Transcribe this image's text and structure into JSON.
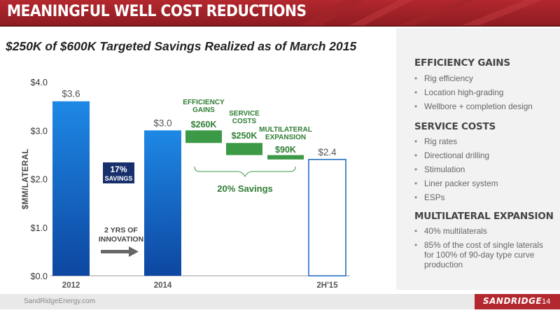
{
  "header": {
    "title": "MEANINGFUL WELL COST REDUCTIONS"
  },
  "subtitle": "$250K of $600K Targeted Savings Realized as of March 2015",
  "panel": {
    "sections": [
      {
        "title": "EFFICIENCY GAINS",
        "items": [
          "Rig efficiency",
          "Location high-grading",
          "Wellbore + completion design"
        ]
      },
      {
        "title": "SERVICE COSTS",
        "items": [
          "Rig rates",
          "Directional drilling",
          "Stimulation",
          "Liner packer system",
          "ESPs"
        ]
      },
      {
        "title": "MULTILATERAL EXPANSION",
        "items": [
          "40% multilaterals",
          "85% of the cost of single laterals for 100% of 90-day type curve production"
        ]
      }
    ]
  },
  "chart_data": {
    "type": "bar",
    "ylabel": "$MM/LATERAL",
    "ylim": [
      0,
      4
    ],
    "yticks": [
      "$0.0",
      "$1.0",
      "$2.0",
      "$3.0",
      "$4.0"
    ],
    "bars": [
      {
        "category": "2012",
        "value": 3.6,
        "label": "$3.6"
      },
      {
        "category": "2014",
        "value": 3.0,
        "label": "$3.0"
      },
      {
        "category": "2H'15",
        "value": 2.4,
        "label": "$2.4",
        "style": "outline"
      }
    ],
    "waterfall": [
      {
        "name": "EFFICIENCY GAINS",
        "value": 0.26,
        "label": "$260K"
      },
      {
        "name": "SERVICE COSTS",
        "value": 0.25,
        "label": "$250K"
      },
      {
        "name": "MULTILATERAL EXPANSION",
        "value": 0.09,
        "label": "$90K"
      }
    ],
    "annotations": {
      "savings_box": [
        "17%",
        "SAVINGS"
      ],
      "innovation": [
        "2 YRS OF",
        "INNOVATION"
      ],
      "bracket": "20% Savings"
    }
  },
  "footer": {
    "url": "SandRidgeEnergy.com",
    "logo": "SANDRIDGE",
    "page": "14"
  },
  "colors": {
    "header_red": "#b3282e",
    "bar_blue": "#1565c0",
    "waterfall_green": "#3c9a46",
    "text_green": "#2e7d32"
  }
}
